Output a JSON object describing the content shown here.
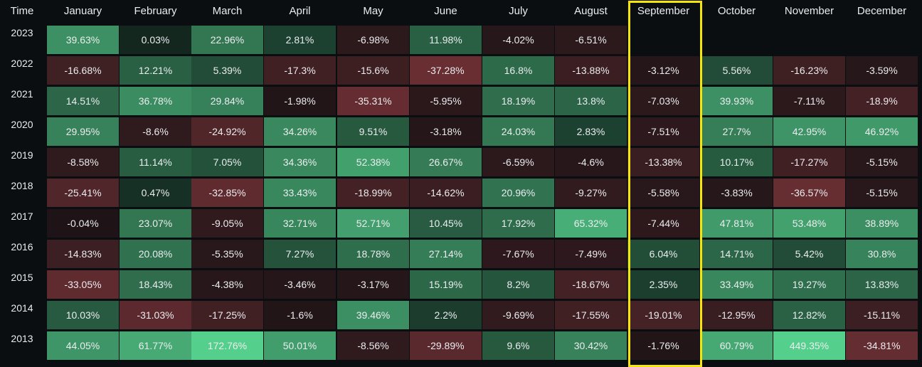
{
  "table": {
    "corner_label": "Time",
    "months": [
      "January",
      "February",
      "March",
      "April",
      "May",
      "June",
      "July",
      "August",
      "September",
      "October",
      "November",
      "December"
    ],
    "rows": [
      {
        "year": "2023",
        "values": [
          "39.63%",
          "0.03%",
          "22.96%",
          "2.81%",
          "-6.98%",
          "11.98%",
          "-4.02%",
          "-6.51%",
          "",
          "",
          "",
          ""
        ]
      },
      {
        "year": "2022",
        "values": [
          "-16.68%",
          "12.21%",
          "5.39%",
          "-17.3%",
          "-15.6%",
          "-37.28%",
          "16.8%",
          "-13.88%",
          "-3.12%",
          "5.56%",
          "-16.23%",
          "-3.59%"
        ]
      },
      {
        "year": "2021",
        "values": [
          "14.51%",
          "36.78%",
          "29.84%",
          "-1.98%",
          "-35.31%",
          "-5.95%",
          "18.19%",
          "13.8%",
          "-7.03%",
          "39.93%",
          "-7.11%",
          "-18.9%"
        ]
      },
      {
        "year": "2020",
        "values": [
          "29.95%",
          "-8.6%",
          "-24.92%",
          "34.26%",
          "9.51%",
          "-3.18%",
          "24.03%",
          "2.83%",
          "-7.51%",
          "27.7%",
          "42.95%",
          "46.92%"
        ]
      },
      {
        "year": "2019",
        "values": [
          "-8.58%",
          "11.14%",
          "7.05%",
          "34.36%",
          "52.38%",
          "26.67%",
          "-6.59%",
          "-4.6%",
          "-13.38%",
          "10.17%",
          "-17.27%",
          "-5.15%"
        ]
      },
      {
        "year": "2018",
        "values": [
          "-25.41%",
          "0.47%",
          "-32.85%",
          "33.43%",
          "-18.99%",
          "-14.62%",
          "20.96%",
          "-9.27%",
          "-5.58%",
          "-3.83%",
          "-36.57%",
          "-5.15%"
        ]
      },
      {
        "year": "2017",
        "values": [
          "-0.04%",
          "23.07%",
          "-9.05%",
          "32.71%",
          "52.71%",
          "10.45%",
          "17.92%",
          "65.32%",
          "-7.44%",
          "47.81%",
          "53.48%",
          "38.89%"
        ]
      },
      {
        "year": "2016",
        "values": [
          "-14.83%",
          "20.08%",
          "-5.35%",
          "7.27%",
          "18.78%",
          "27.14%",
          "-7.67%",
          "-7.49%",
          "6.04%",
          "14.71%",
          "5.42%",
          "30.8%"
        ]
      },
      {
        "year": "2015",
        "values": [
          "-33.05%",
          "18.43%",
          "-4.38%",
          "-3.46%",
          "-3.17%",
          "15.19%",
          "8.2%",
          "-18.67%",
          "2.35%",
          "33.49%",
          "19.27%",
          "13.83%"
        ]
      },
      {
        "year": "2014",
        "values": [
          "10.03%",
          "-31.03%",
          "-17.25%",
          "-1.6%",
          "39.46%",
          "2.2%",
          "-9.69%",
          "-17.55%",
          "-19.01%",
          "-12.95%",
          "12.82%",
          "-15.11%"
        ]
      },
      {
        "year": "2013",
        "values": [
          "44.05%",
          "61.77%",
          "172.76%",
          "50.01%",
          "-8.56%",
          "-29.89%",
          "9.6%",
          "30.42%",
          "-1.76%",
          "60.79%",
          "449.35%",
          "-34.81%"
        ]
      }
    ],
    "highlighted_month": "September"
  },
  "colors": {
    "background": "#0b0e11",
    "positive_base": "#12241d",
    "positive_max": "#55cf8c",
    "negative_base": "#1e1417",
    "negative_max": "#6a2f33",
    "highlight_border": "#f5e50a"
  }
}
